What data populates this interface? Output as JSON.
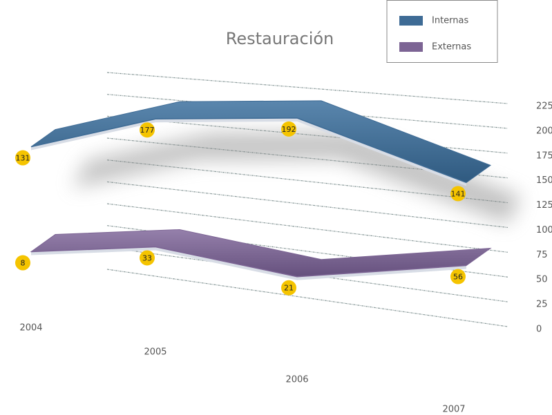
{
  "chart_data": {
    "type": "line3d",
    "title": "Restauración",
    "categories": [
      "2004",
      "2005",
      "2006",
      "2007"
    ],
    "series": [
      {
        "name": "Internas",
        "color": "#3e6b95",
        "values": [
          131,
          177,
          192,
          141
        ]
      },
      {
        "name": "Externas",
        "color": "#7c6494",
        "values": [
          8,
          33,
          21,
          56
        ]
      }
    ],
    "ylim": [
      0,
      225
    ],
    "yticks": [
      0,
      25,
      50,
      75,
      100,
      125,
      150,
      175,
      200,
      225
    ],
    "grid": true,
    "legend": "top-right"
  }
}
